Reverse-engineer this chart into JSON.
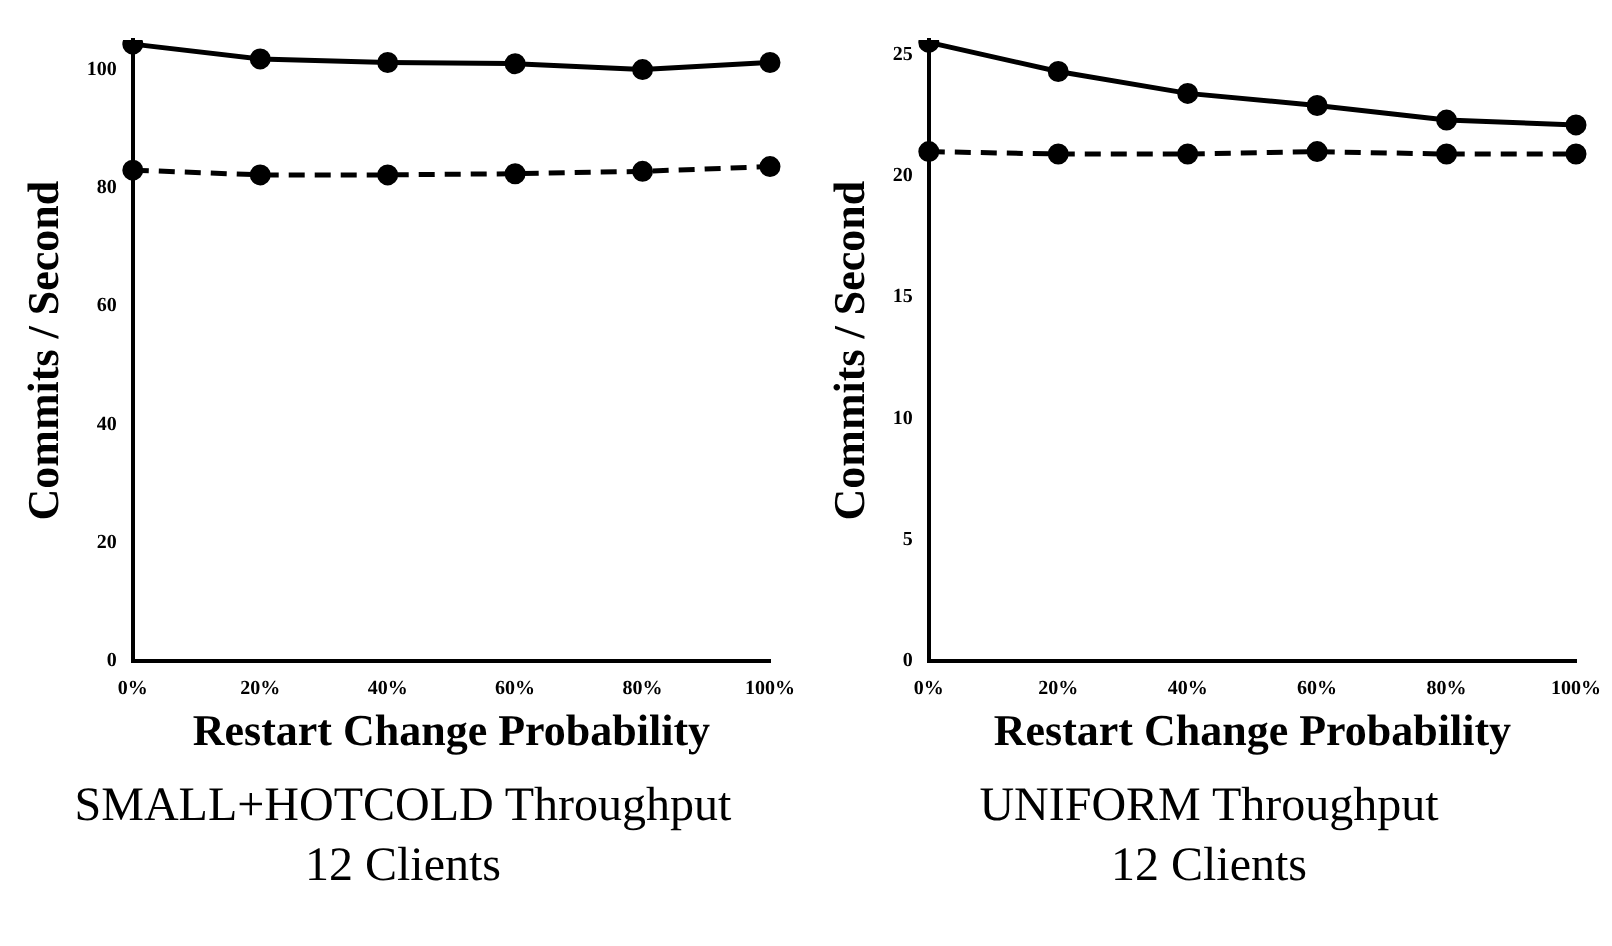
{
  "chart_data": [
    {
      "type": "line",
      "title": "SMALL+HOTCOLD Throughput",
      "subtitle": "12 Clients",
      "xlabel": "Restart Change Probability",
      "ylabel": "Commits / Second",
      "categories": [
        "0%",
        "20%",
        "40%",
        "60%",
        "80%",
        "100%"
      ],
      "ylim": [
        0,
        105
      ],
      "yticks": [
        0,
        20,
        40,
        60,
        80,
        100
      ],
      "grid": false,
      "legend": false,
      "marker": "circle",
      "series": [
        {
          "color": "#000000",
          "line_style": "solid",
          "values": [
            104.3,
            101.8,
            101.2,
            101,
            100,
            101.2
          ]
        },
        {
          "color": "#000000",
          "line_style": "dashed",
          "values": [
            83,
            82.2,
            82.2,
            82.4,
            82.8,
            83.6
          ]
        }
      ]
    },
    {
      "type": "line",
      "title": "UNIFORM Throughput",
      "subtitle": "12 Clients",
      "xlabel": "Restart Change Probability",
      "ylabel": "Commits / Second",
      "categories": [
        "0%",
        "20%",
        "40%",
        "60%",
        "80%",
        "100%"
      ],
      "ylim": [
        0,
        25.6
      ],
      "yticks": [
        0,
        5,
        10,
        15,
        20,
        25
      ],
      "grid": false,
      "legend": false,
      "marker": "circle",
      "series": [
        {
          "color": "#000000",
          "line_style": "solid",
          "values": [
            25.5,
            24.3,
            23.4,
            22.9,
            22.3,
            22.1
          ]
        },
        {
          "color": "#000000",
          "line_style": "dashed",
          "values": [
            21,
            20.9,
            20.9,
            21,
            20.9,
            20.9
          ]
        }
      ]
    }
  ]
}
